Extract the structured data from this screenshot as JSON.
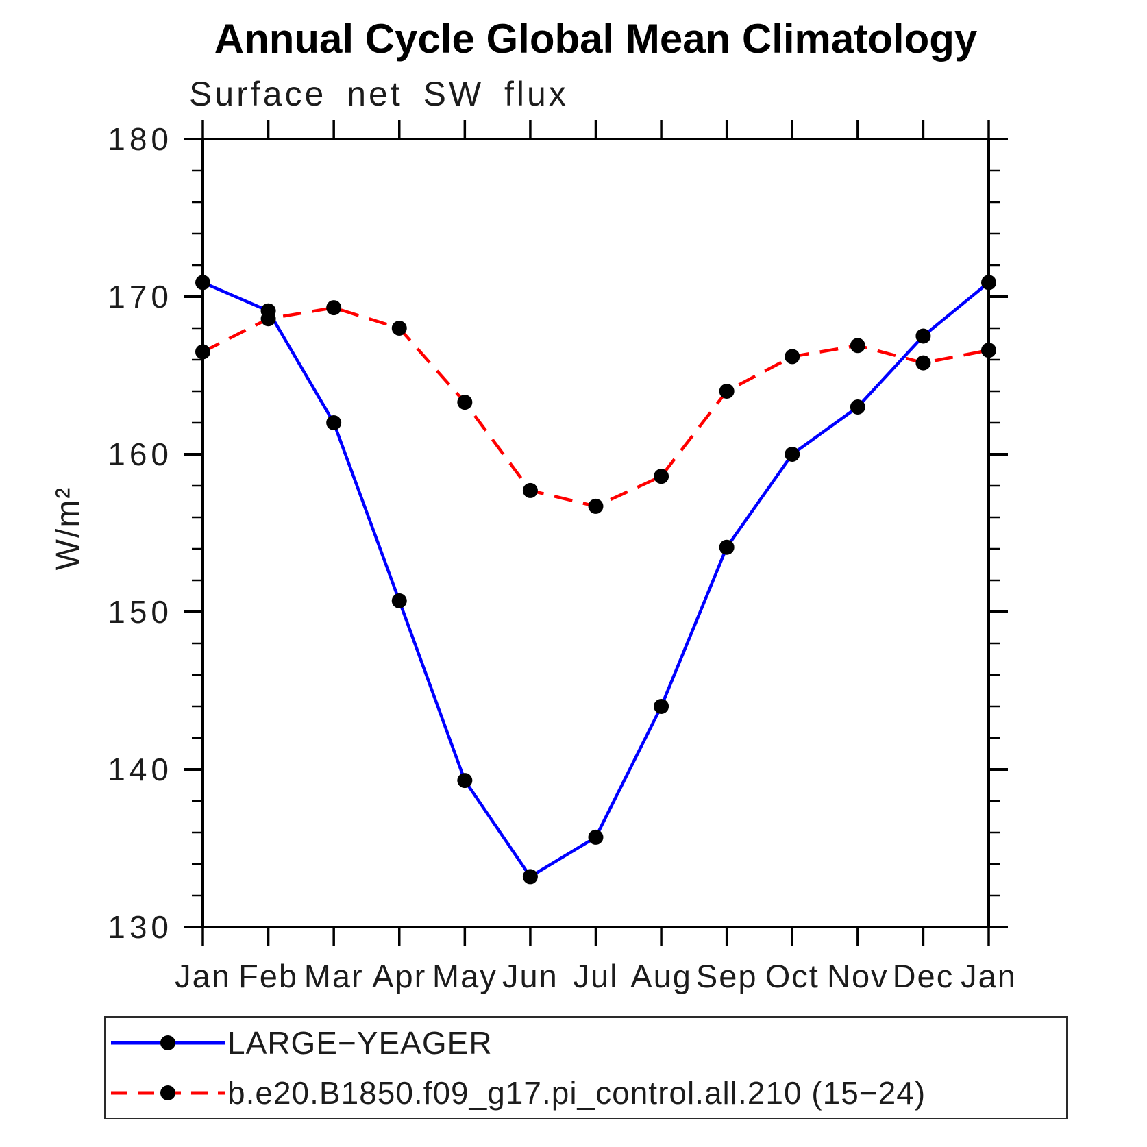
{
  "chart_data": {
    "type": "line",
    "title": "Annual Cycle Global Mean Climatology",
    "subtitle": "Surface net SW flux",
    "ylabel": "W/m²",
    "xlabel": "",
    "categories": [
      "Jan",
      "Feb",
      "Mar",
      "Apr",
      "May",
      "Jun",
      "Jul",
      "Aug",
      "Sep",
      "Oct",
      "Nov",
      "Dec",
      "Jan"
    ],
    "ylim": [
      130,
      180
    ],
    "y_major_step": 10,
    "y_minor_step": 2,
    "y_tick_labels": [
      "130",
      "140",
      "150",
      "160",
      "170",
      "180"
    ],
    "grid": "off",
    "frame": "box-with-outward-ticks",
    "legend_position": "bottom",
    "marker": "filled-circle",
    "marker_color": "#000000",
    "series": [
      {
        "name": "LARGE−YEAGER",
        "color": "#0000ff",
        "style": "solid",
        "values": [
          170.9,
          169.1,
          162.0,
          150.7,
          139.3,
          133.2,
          135.7,
          144.0,
          154.1,
          160.0,
          163.0,
          167.5,
          170.9
        ]
      },
      {
        "name": "b.e20.B1850.f09_g17.pi_control.all.210 (15−24)",
        "color": "#ff0000",
        "style": "dashed",
        "values": [
          166.5,
          168.6,
          169.3,
          168.0,
          163.3,
          157.7,
          156.7,
          158.6,
          164.0,
          166.2,
          166.9,
          165.8,
          166.6
        ]
      }
    ]
  }
}
